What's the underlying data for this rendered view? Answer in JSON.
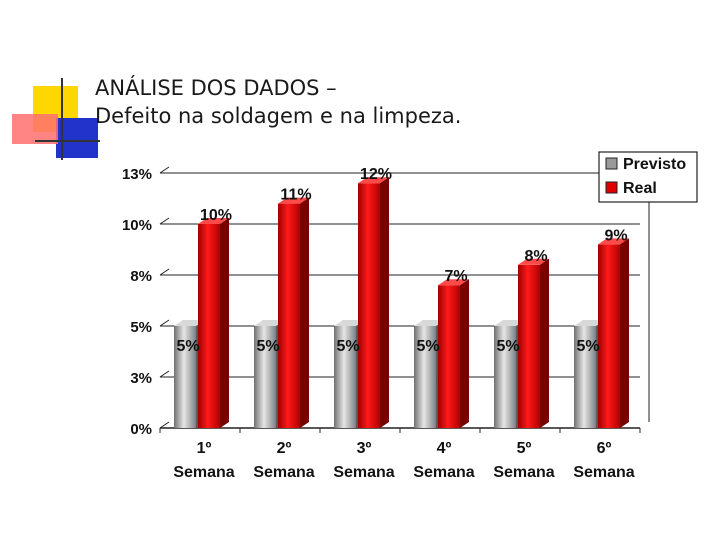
{
  "title": {
    "line1": "ANÁLISE DOS DADOS –",
    "line2": "Defeito na soldagem e na limpeza."
  },
  "colors": {
    "previsto": "#a8a8a8",
    "real": "#e00000"
  },
  "chart_data": {
    "type": "bar",
    "categories": [
      [
        "1º",
        "Semana"
      ],
      [
        "2º",
        "Semana"
      ],
      [
        "3º",
        "Semana"
      ],
      [
        "4º",
        "Semana"
      ],
      [
        "5º",
        "Semana"
      ],
      [
        "6º",
        "Semana"
      ]
    ],
    "series": [
      {
        "name": "Previsto",
        "values": [
          5,
          5,
          5,
          5,
          5,
          5
        ],
        "labels": [
          "5%",
          "5%",
          "5%",
          "5%",
          "5%",
          "5%"
        ]
      },
      {
        "name": "Real",
        "values": [
          10,
          11,
          12,
          7,
          8,
          9
        ],
        "labels": [
          "10%",
          "11%",
          "12%",
          "7%",
          "8%",
          "9%"
        ]
      }
    ],
    "yticks": [
      {
        "value": 0,
        "label": "0%"
      },
      {
        "value": 2.5,
        "label": "3%"
      },
      {
        "value": 5,
        "label": "5%"
      },
      {
        "value": 7.5,
        "label": "8%"
      },
      {
        "value": 10,
        "label": "10%"
      },
      {
        "value": 12.5,
        "label": "13%"
      }
    ],
    "ylim": [
      0,
      12.5
    ],
    "grid": true,
    "legend_position": "top-right",
    "xlabel": "",
    "ylabel": ""
  }
}
